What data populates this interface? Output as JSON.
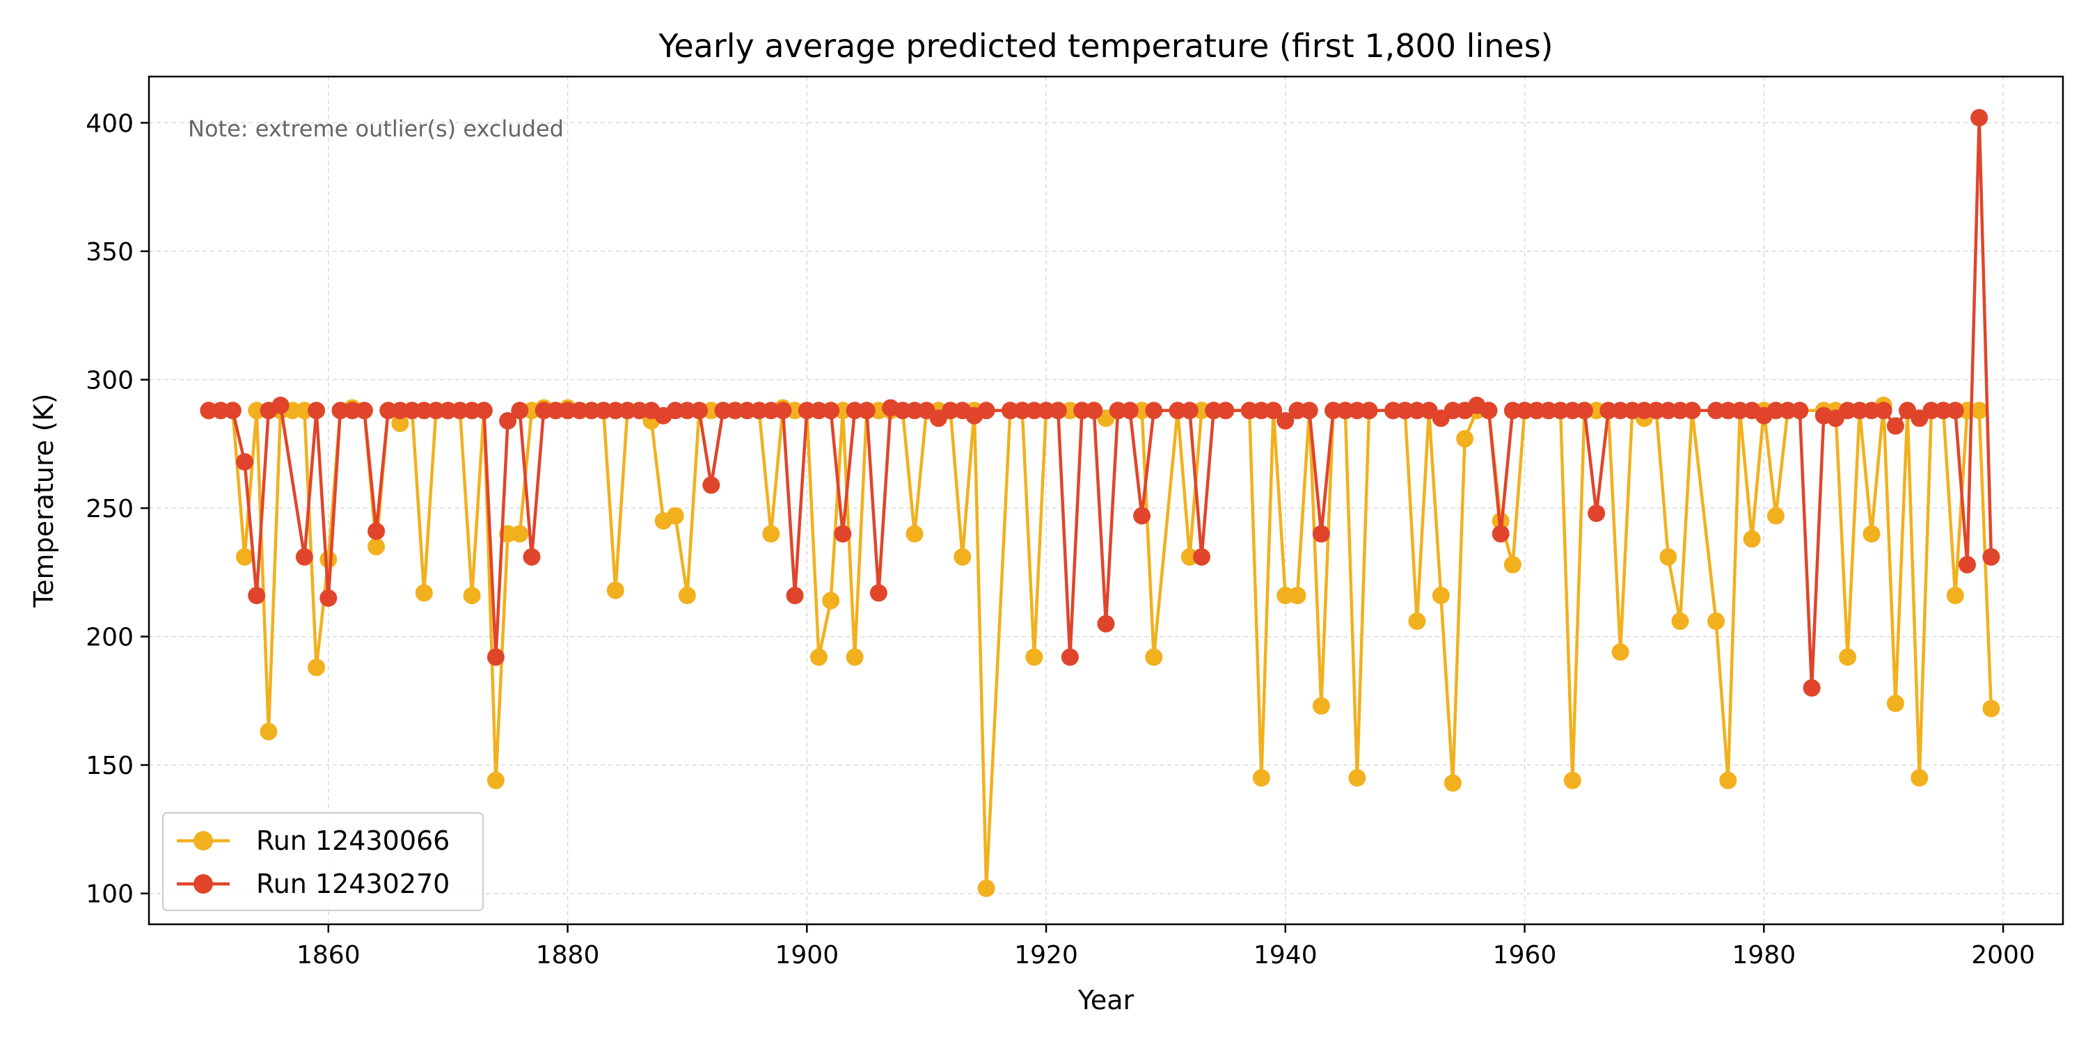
{
  "chart_data": {
    "type": "line",
    "title": "Yearly average predicted temperature (first 1,800 lines)",
    "xlabel": "Year",
    "ylabel": "Temperature (K)",
    "annotation": "Note: extreme outlier(s) excluded",
    "xlim": [
      1845,
      2005
    ],
    "ylim": [
      88,
      418
    ],
    "xticks": [
      1860,
      1880,
      1900,
      1920,
      1940,
      1960,
      1980,
      2000
    ],
    "yticks": [
      100,
      150,
      200,
      250,
      300,
      350,
      400
    ],
    "grid": true,
    "legend_position": "bottom-left",
    "series": [
      {
        "name": "Run 12430066",
        "color": "#f2b01e",
        "points": [
          [
            1850,
            288
          ],
          [
            1851,
            288
          ],
          [
            1852,
            288
          ],
          [
            1853,
            231
          ],
          [
            1854,
            288
          ],
          [
            1855,
            163
          ],
          [
            1856,
            288
          ],
          [
            1857,
            288
          ],
          [
            1858,
            288
          ],
          [
            1859,
            188
          ],
          [
            1860,
            230
          ],
          [
            1861,
            288
          ],
          [
            1862,
            289
          ],
          [
            1863,
            288
          ],
          [
            1864,
            235
          ],
          [
            1865,
            288
          ],
          [
            1866,
            283
          ],
          [
            1867,
            288
          ],
          [
            1868,
            217
          ],
          [
            1869,
            288
          ],
          [
            1870,
            288
          ],
          [
            1871,
            288
          ],
          [
            1872,
            216
          ],
          [
            1873,
            288
          ],
          [
            1874,
            144
          ],
          [
            1875,
            240
          ],
          [
            1876,
            240
          ],
          [
            1877,
            288
          ],
          [
            1878,
            289
          ],
          [
            1879,
            288
          ],
          [
            1880,
            289
          ],
          [
            1881,
            288
          ],
          [
            1882,
            288
          ],
          [
            1883,
            288
          ],
          [
            1884,
            218
          ],
          [
            1885,
            288
          ],
          [
            1886,
            288
          ],
          [
            1887,
            284
          ],
          [
            1888,
            245
          ],
          [
            1889,
            247
          ],
          [
            1890,
            216
          ],
          [
            1891,
            288
          ],
          [
            1892,
            288
          ],
          [
            1893,
            288
          ],
          [
            1894,
            288
          ],
          [
            1895,
            288
          ],
          [
            1896,
            288
          ],
          [
            1897,
            240
          ],
          [
            1898,
            289
          ],
          [
            1899,
            288
          ],
          [
            1900,
            288
          ],
          [
            1901,
            192
          ],
          [
            1902,
            214
          ],
          [
            1903,
            288
          ],
          [
            1904,
            192
          ],
          [
            1905,
            288
          ],
          [
            1906,
            288
          ],
          [
            1907,
            288
          ],
          [
            1908,
            288
          ],
          [
            1909,
            240
          ],
          [
            1910,
            288
          ],
          [
            1911,
            288
          ],
          [
            1912,
            288
          ],
          [
            1913,
            231
          ],
          [
            1914,
            288
          ],
          [
            1915,
            102
          ],
          [
            1917,
            288
          ],
          [
            1918,
            288
          ],
          [
            1919,
            192
          ],
          [
            1920,
            288
          ],
          [
            1921,
            288
          ],
          [
            1922,
            288
          ],
          [
            1923,
            288
          ],
          [
            1924,
            288
          ],
          [
            1925,
            285
          ],
          [
            1926,
            288
          ],
          [
            1927,
            288
          ],
          [
            1928,
            288
          ],
          [
            1929,
            192
          ],
          [
            1931,
            288
          ],
          [
            1932,
            231
          ],
          [
            1933,
            288
          ],
          [
            1934,
            288
          ],
          [
            1935,
            288
          ],
          [
            1937,
            288
          ],
          [
            1938,
            145
          ],
          [
            1939,
            288
          ],
          [
            1940,
            216
          ],
          [
            1941,
            216
          ],
          [
            1942,
            288
          ],
          [
            1943,
            173
          ],
          [
            1944,
            288
          ],
          [
            1945,
            288
          ],
          [
            1946,
            145
          ],
          [
            1947,
            288
          ],
          [
            1949,
            288
          ],
          [
            1950,
            288
          ],
          [
            1951,
            206
          ],
          [
            1952,
            288
          ],
          [
            1953,
            216
          ],
          [
            1954,
            143
          ],
          [
            1955,
            277
          ],
          [
            1956,
            288
          ],
          [
            1957,
            288
          ],
          [
            1958,
            245
          ],
          [
            1959,
            228
          ],
          [
            1960,
            288
          ],
          [
            1961,
            288
          ],
          [
            1962,
            288
          ],
          [
            1963,
            288
          ],
          [
            1964,
            144
          ],
          [
            1965,
            288
          ],
          [
            1966,
            288
          ],
          [
            1967,
            288
          ],
          [
            1968,
            194
          ],
          [
            1969,
            288
          ],
          [
            1970,
            285
          ],
          [
            1971,
            288
          ],
          [
            1972,
            231
          ],
          [
            1973,
            206
          ],
          [
            1974,
            288
          ],
          [
            1976,
            206
          ],
          [
            1977,
            144
          ],
          [
            1978,
            288
          ],
          [
            1979,
            238
          ],
          [
            1980,
            288
          ],
          [
            1981,
            247
          ],
          [
            1982,
            288
          ],
          [
            1983,
            288
          ],
          [
            1985,
            288
          ],
          [
            1986,
            288
          ],
          [
            1987,
            192
          ],
          [
            1988,
            288
          ],
          [
            1989,
            240
          ],
          [
            1990,
            290
          ],
          [
            1991,
            174
          ],
          [
            1992,
            288
          ],
          [
            1993,
            145
          ],
          [
            1994,
            288
          ],
          [
            1995,
            288
          ],
          [
            1996,
            216
          ],
          [
            1997,
            288
          ],
          [
            1998,
            288
          ],
          [
            1999,
            172
          ]
        ]
      },
      {
        "name": "Run 12430270",
        "color": "#e0452b",
        "points": [
          [
            1850,
            288
          ],
          [
            1851,
            288
          ],
          [
            1852,
            288
          ],
          [
            1853,
            268
          ],
          [
            1854,
            216
          ],
          [
            1855,
            288
          ],
          [
            1856,
            290
          ],
          [
            1858,
            231
          ],
          [
            1859,
            288
          ],
          [
            1860,
            215
          ],
          [
            1861,
            288
          ],
          [
            1862,
            288
          ],
          [
            1863,
            288
          ],
          [
            1864,
            241
          ],
          [
            1865,
            288
          ],
          [
            1866,
            288
          ],
          [
            1867,
            288
          ],
          [
            1868,
            288
          ],
          [
            1869,
            288
          ],
          [
            1870,
            288
          ],
          [
            1871,
            288
          ],
          [
            1872,
            288
          ],
          [
            1873,
            288
          ],
          [
            1874,
            192
          ],
          [
            1875,
            284
          ],
          [
            1876,
            288
          ],
          [
            1877,
            231
          ],
          [
            1878,
            288
          ],
          [
            1879,
            288
          ],
          [
            1880,
            288
          ],
          [
            1881,
            288
          ],
          [
            1882,
            288
          ],
          [
            1883,
            288
          ],
          [
            1884,
            288
          ],
          [
            1885,
            288
          ],
          [
            1886,
            288
          ],
          [
            1887,
            288
          ],
          [
            1888,
            286
          ],
          [
            1889,
            288
          ],
          [
            1890,
            288
          ],
          [
            1891,
            288
          ],
          [
            1892,
            259
          ],
          [
            1893,
            288
          ],
          [
            1894,
            288
          ],
          [
            1895,
            288
          ],
          [
            1896,
            288
          ],
          [
            1897,
            288
          ],
          [
            1898,
            288
          ],
          [
            1899,
            216
          ],
          [
            1900,
            288
          ],
          [
            1901,
            288
          ],
          [
            1902,
            288
          ],
          [
            1903,
            240
          ],
          [
            1904,
            288
          ],
          [
            1905,
            288
          ],
          [
            1906,
            217
          ],
          [
            1907,
            289
          ],
          [
            1908,
            288
          ],
          [
            1909,
            288
          ],
          [
            1910,
            288
          ],
          [
            1911,
            285
          ],
          [
            1912,
            288
          ],
          [
            1913,
            288
          ],
          [
            1914,
            286
          ],
          [
            1915,
            288
          ],
          [
            1917,
            288
          ],
          [
            1918,
            288
          ],
          [
            1919,
            288
          ],
          [
            1920,
            288
          ],
          [
            1921,
            288
          ],
          [
            1922,
            192
          ],
          [
            1923,
            288
          ],
          [
            1924,
            288
          ],
          [
            1925,
            205
          ],
          [
            1926,
            288
          ],
          [
            1927,
            288
          ],
          [
            1928,
            247
          ],
          [
            1929,
            288
          ],
          [
            1931,
            288
          ],
          [
            1932,
            288
          ],
          [
            1933,
            231
          ],
          [
            1934,
            288
          ],
          [
            1935,
            288
          ],
          [
            1937,
            288
          ],
          [
            1938,
            288
          ],
          [
            1939,
            288
          ],
          [
            1940,
            284
          ],
          [
            1941,
            288
          ],
          [
            1942,
            288
          ],
          [
            1943,
            240
          ],
          [
            1944,
            288
          ],
          [
            1945,
            288
          ],
          [
            1946,
            288
          ],
          [
            1947,
            288
          ],
          [
            1949,
            288
          ],
          [
            1950,
            288
          ],
          [
            1951,
            288
          ],
          [
            1952,
            288
          ],
          [
            1953,
            285
          ],
          [
            1954,
            288
          ],
          [
            1955,
            288
          ],
          [
            1956,
            290
          ],
          [
            1957,
            288
          ],
          [
            1958,
            240
          ],
          [
            1959,
            288
          ],
          [
            1960,
            288
          ],
          [
            1961,
            288
          ],
          [
            1962,
            288
          ],
          [
            1963,
            288
          ],
          [
            1964,
            288
          ],
          [
            1965,
            288
          ],
          [
            1966,
            248
          ],
          [
            1967,
            288
          ],
          [
            1968,
            288
          ],
          [
            1969,
            288
          ],
          [
            1970,
            288
          ],
          [
            1971,
            288
          ],
          [
            1972,
            288
          ],
          [
            1973,
            288
          ],
          [
            1974,
            288
          ],
          [
            1976,
            288
          ],
          [
            1977,
            288
          ],
          [
            1978,
            288
          ],
          [
            1979,
            288
          ],
          [
            1980,
            286
          ],
          [
            1981,
            288
          ],
          [
            1982,
            288
          ],
          [
            1983,
            288
          ],
          [
            1984,
            180
          ],
          [
            1985,
            286
          ],
          [
            1986,
            285
          ],
          [
            1987,
            288
          ],
          [
            1988,
            288
          ],
          [
            1989,
            288
          ],
          [
            1990,
            288
          ],
          [
            1991,
            282
          ],
          [
            1992,
            288
          ],
          [
            1993,
            285
          ],
          [
            1994,
            288
          ],
          [
            1995,
            288
          ],
          [
            1996,
            288
          ],
          [
            1997,
            228
          ],
          [
            1998,
            402
          ],
          [
            1999,
            231
          ]
        ]
      }
    ]
  }
}
